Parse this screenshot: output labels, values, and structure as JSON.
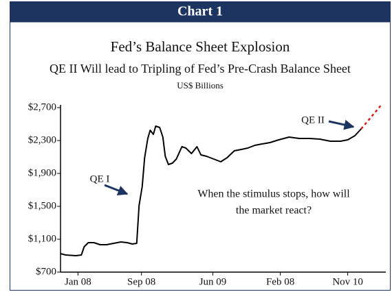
{
  "chart_data": {
    "type": "line",
    "header": "Chart 1",
    "title": "Fed’s Balance Sheet Explosion",
    "subtitle": "QE II Will lead to Tripling of Fed’s Pre-Crash Balance Sheet",
    "unit": "US$ Billions",
    "annotations": [
      "QE I",
      "QE II",
      "When the stimulus stops, how will",
      "the market react?"
    ],
    "x": [
      -2.2,
      -1.56,
      -0.26,
      0.43,
      0.78,
      1.3,
      2.0,
      2.8,
      3.6,
      4.5,
      5.4,
      6.2,
      6.85,
      7.4,
      7.7,
      8.1,
      8.4,
      8.8,
      9.1,
      9.5,
      9.8,
      10.3,
      10.7,
      11.0,
      11.4,
      11.9,
      12.4,
      13.1,
      13.6,
      14.3,
      15.0,
      15.5,
      16.2,
      17.1,
      18.0,
      18.8,
      19.7,
      20.6,
      21.4,
      22.3,
      23.2,
      24.2,
      25.3,
      26.6,
      27.9,
      29.2,
      30.5,
      31.8,
      33.1,
      34.0,
      34.9,
      35.7,
      38.3
    ],
    "series": [
      {
        "color": "#000000",
        "dashed": false,
        "values": [
          925,
          908,
          900,
          908,
          1008,
          1058,
          1058,
          1033,
          1033,
          1050,
          1067,
          1058,
          1042,
          1050,
          1508,
          1742,
          2092,
          2325,
          2425,
          2375,
          2475,
          2458,
          2342,
          2108,
          2008,
          2025,
          2075,
          2225,
          2208,
          2142,
          2225,
          2125,
          2108,
          2075,
          2042,
          2092,
          2175,
          2192,
          2208,
          2242,
          2258,
          2275,
          2308,
          2342,
          2325,
          2325,
          2317,
          2292,
          2292,
          2308,
          2358,
          2442,
          null
        ]
      },
      {
        "color": "#d0201c",
        "dashed": true,
        "values": [
          null,
          null,
          null,
          null,
          null,
          null,
          null,
          null,
          null,
          null,
          null,
          null,
          null,
          null,
          null,
          null,
          null,
          null,
          null,
          null,
          null,
          null,
          null,
          null,
          null,
          null,
          null,
          null,
          null,
          null,
          null,
          null,
          null,
          null,
          null,
          null,
          null,
          null,
          null,
          null,
          null,
          null,
          null,
          null,
          null,
          null,
          null,
          null,
          null,
          null,
          null,
          2442,
          2740
        ]
      }
    ],
    "xlim": [
      -2.2,
      38.8
    ],
    "xticks": [
      {
        "value": 0,
        "label": "Jan 08"
      },
      {
        "value": 8,
        "label": "Sep 08"
      },
      {
        "value": 17,
        "label": "Jun 09"
      },
      {
        "value": 25.5,
        "label": "Feb 08"
      },
      {
        "value": 34,
        "label": "Nov 10"
      }
    ],
    "ylim": [
      700,
      2700
    ],
    "yticks": [
      {
        "value": 700,
        "label": "$700"
      },
      {
        "value": 1100,
        "label": "$1,100"
      },
      {
        "value": 1500,
        "label": "$1,500"
      },
      {
        "value": 1900,
        "label": "$1,900"
      },
      {
        "value": 2300,
        "label": "$2,300"
      },
      {
        "value": 2700,
        "label": "$2,700"
      }
    ]
  }
}
